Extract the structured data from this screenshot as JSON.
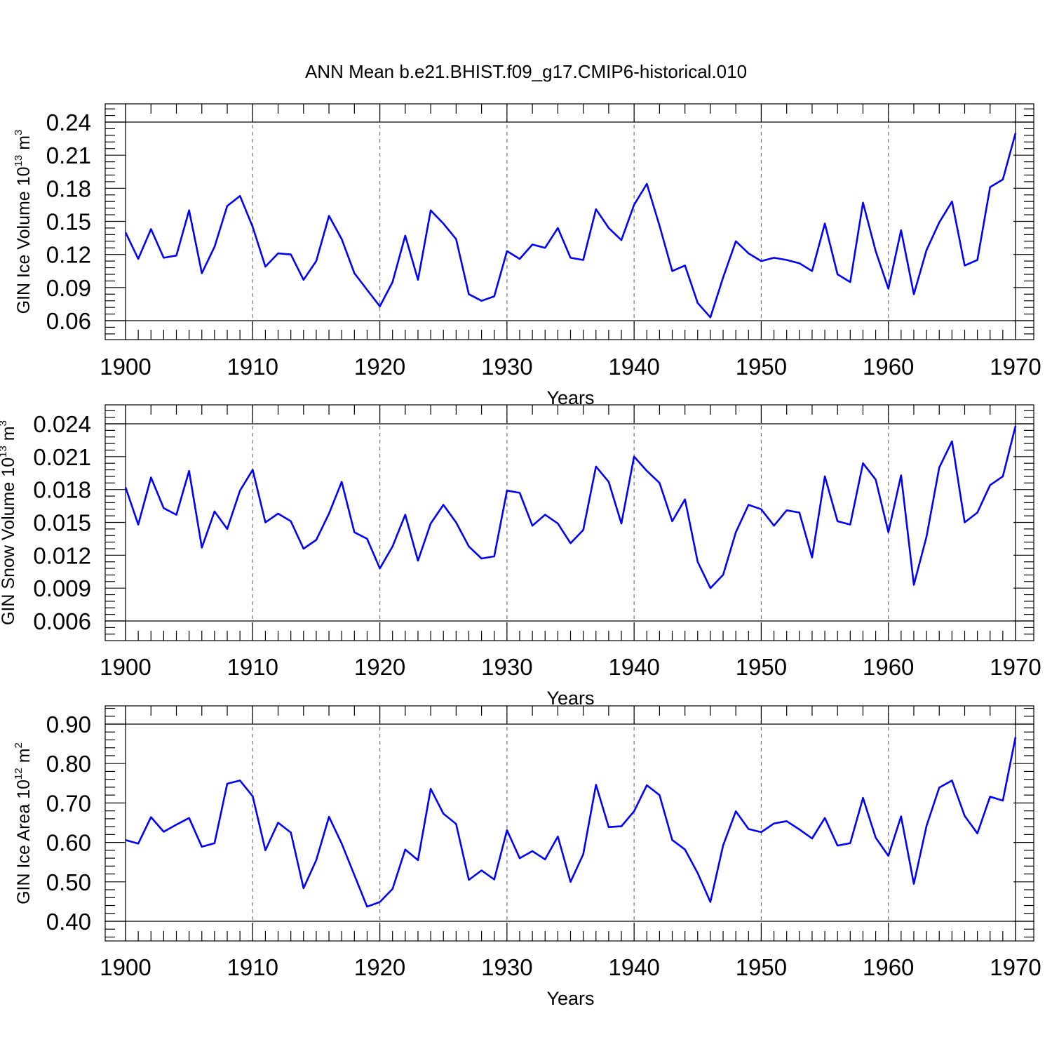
{
  "title": "ANN Mean b.e21.BHIST.f09_g17.CMIP6-historical.010",
  "colors": {
    "line": "#0000ff",
    "axis": "#000000",
    "grid": "#777777"
  },
  "chart_data": [
    {
      "type": "line",
      "xlabel": "Years",
      "ylabel": {
        "name": "GIN Ice Volume",
        "base": "10",
        "exp": "13",
        "unit": "m",
        "unit_exp": "3"
      },
      "xlim": [
        1900,
        1970
      ],
      "ylim": [
        0.06,
        0.24
      ],
      "xticks": [
        1900,
        1910,
        1920,
        1930,
        1940,
        1950,
        1960,
        1970
      ],
      "xtick_labels": [
        "1900",
        "1910",
        "1920",
        "1930",
        "1940",
        "1950",
        "1960",
        "1970"
      ],
      "yticks": [
        0.06,
        0.09,
        0.12,
        0.15,
        0.18,
        0.21,
        0.24
      ],
      "ytick_labels": [
        "0.06",
        "0.09",
        "0.12",
        "0.15",
        "0.18",
        "0.21",
        "0.24"
      ],
      "grid_x": [
        1910,
        1920,
        1930,
        1940,
        1950,
        1960
      ],
      "x": [
        1900,
        1901,
        1902,
        1903,
        1904,
        1905,
        1906,
        1907,
        1908,
        1909,
        1910,
        1911,
        1912,
        1913,
        1914,
        1915,
        1916,
        1917,
        1918,
        1919,
        1920,
        1921,
        1922,
        1923,
        1924,
        1925,
        1926,
        1927,
        1928,
        1929,
        1930,
        1931,
        1932,
        1933,
        1934,
        1935,
        1936,
        1937,
        1938,
        1939,
        1940,
        1941,
        1942,
        1943,
        1944,
        1945,
        1946,
        1947,
        1948,
        1949,
        1950,
        1951,
        1952,
        1953,
        1954,
        1955,
        1956,
        1957,
        1958,
        1959,
        1960,
        1961,
        1962,
        1963,
        1964,
        1965,
        1966,
        1967,
        1968,
        1969,
        1970
      ],
      "values": [
        0.14,
        0.116,
        0.143,
        0.117,
        0.119,
        0.16,
        0.103,
        0.127,
        0.164,
        0.173,
        0.145,
        0.109,
        0.121,
        0.12,
        0.097,
        0.114,
        0.155,
        0.134,
        0.103,
        0.088,
        0.073,
        0.095,
        0.137,
        0.097,
        0.16,
        0.148,
        0.134,
        0.084,
        0.078,
        0.082,
        0.123,
        0.116,
        0.129,
        0.126,
        0.144,
        0.117,
        0.115,
        0.161,
        0.144,
        0.133,
        0.165,
        0.184,
        0.146,
        0.105,
        0.11,
        0.076,
        0.063,
        0.099,
        0.132,
        0.121,
        0.114,
        0.117,
        0.115,
        0.112,
        0.105,
        0.148,
        0.102,
        0.095,
        0.167,
        0.123,
        0.089,
        0.142,
        0.084,
        0.124,
        0.149,
        0.168,
        0.11,
        0.115,
        0.181,
        0.188,
        0.23
      ]
    },
    {
      "type": "line",
      "xlabel": "Years",
      "ylabel": {
        "name": "GIN Snow Volume",
        "base": "10",
        "exp": "13",
        "unit": "m",
        "unit_exp": "3"
      },
      "xlim": [
        1900,
        1970
      ],
      "ylim": [
        0.006,
        0.024
      ],
      "xticks": [
        1900,
        1910,
        1920,
        1930,
        1940,
        1950,
        1960,
        1970
      ],
      "xtick_labels": [
        "1900",
        "1910",
        "1920",
        "1930",
        "1940",
        "1950",
        "1960",
        "1970"
      ],
      "yticks": [
        0.006,
        0.009,
        0.012,
        0.015,
        0.018,
        0.021,
        0.024
      ],
      "ytick_labels": [
        "0.006",
        "0.009",
        "0.012",
        "0.015",
        "0.018",
        "0.021",
        "0.024"
      ],
      "grid_x": [
        1910,
        1920,
        1930,
        1940,
        1950,
        1960
      ],
      "x": [
        1900,
        1901,
        1902,
        1903,
        1904,
        1905,
        1906,
        1907,
        1908,
        1909,
        1910,
        1911,
        1912,
        1913,
        1914,
        1915,
        1916,
        1917,
        1918,
        1919,
        1920,
        1921,
        1922,
        1923,
        1924,
        1925,
        1926,
        1927,
        1928,
        1929,
        1930,
        1931,
        1932,
        1933,
        1934,
        1935,
        1936,
        1937,
        1938,
        1939,
        1940,
        1941,
        1942,
        1943,
        1944,
        1945,
        1946,
        1947,
        1948,
        1949,
        1950,
        1951,
        1952,
        1953,
        1954,
        1955,
        1956,
        1957,
        1958,
        1959,
        1960,
        1961,
        1962,
        1963,
        1964,
        1965,
        1966,
        1967,
        1968,
        1969,
        1970
      ],
      "values": [
        0.0182,
        0.0148,
        0.0191,
        0.0163,
        0.0157,
        0.0197,
        0.0127,
        0.016,
        0.0144,
        0.0179,
        0.0198,
        0.015,
        0.0158,
        0.0151,
        0.0126,
        0.0134,
        0.0158,
        0.0187,
        0.0141,
        0.0135,
        0.0108,
        0.0128,
        0.0157,
        0.0115,
        0.0149,
        0.0166,
        0.015,
        0.0128,
        0.0117,
        0.0119,
        0.0179,
        0.0177,
        0.0147,
        0.0157,
        0.0149,
        0.0131,
        0.0143,
        0.0201,
        0.0187,
        0.0149,
        0.021,
        0.0197,
        0.0186,
        0.0151,
        0.0171,
        0.0114,
        0.009,
        0.0102,
        0.0141,
        0.0166,
        0.0162,
        0.0147,
        0.0161,
        0.0159,
        0.0118,
        0.0192,
        0.0151,
        0.0148,
        0.0204,
        0.0189,
        0.0141,
        0.0193,
        0.0093,
        0.0137,
        0.02,
        0.0224,
        0.015,
        0.0159,
        0.0184,
        0.0192,
        0.0238
      ]
    },
    {
      "type": "line",
      "xlabel": "Years",
      "ylabel": {
        "name": "GIN Ice Area",
        "base": "10",
        "exp": "12",
        "unit": "m",
        "unit_exp": "2"
      },
      "xlim": [
        1900,
        1970
      ],
      "ylim": [
        0.4,
        0.9
      ],
      "xticks": [
        1900,
        1910,
        1920,
        1930,
        1940,
        1950,
        1960,
        1970
      ],
      "xtick_labels": [
        "1900",
        "1910",
        "1920",
        "1930",
        "1940",
        "1950",
        "1960",
        "1970"
      ],
      "yticks": [
        0.4,
        0.5,
        0.6,
        0.7,
        0.8,
        0.9
      ],
      "ytick_labels": [
        "0.40",
        "0.50",
        "0.60",
        "0.70",
        "0.80",
        "0.90"
      ],
      "grid_x": [
        1910,
        1920,
        1930,
        1940,
        1950,
        1960
      ],
      "x": [
        1900,
        1901,
        1902,
        1903,
        1904,
        1905,
        1906,
        1907,
        1908,
        1909,
        1910,
        1911,
        1912,
        1913,
        1914,
        1915,
        1916,
        1917,
        1918,
        1919,
        1920,
        1921,
        1922,
        1923,
        1924,
        1925,
        1926,
        1927,
        1928,
        1929,
        1930,
        1931,
        1932,
        1933,
        1934,
        1935,
        1936,
        1937,
        1938,
        1939,
        1940,
        1941,
        1942,
        1943,
        1944,
        1945,
        1946,
        1947,
        1948,
        1949,
        1950,
        1951,
        1952,
        1953,
        1954,
        1955,
        1956,
        1957,
        1958,
        1959,
        1960,
        1961,
        1962,
        1963,
        1964,
        1965,
        1966,
        1967,
        1968,
        1969,
        1970
      ],
      "values": [
        0.606,
        0.597,
        0.664,
        0.627,
        0.645,
        0.662,
        0.589,
        0.598,
        0.749,
        0.757,
        0.717,
        0.58,
        0.65,
        0.625,
        0.484,
        0.555,
        0.665,
        0.597,
        0.517,
        0.437,
        0.449,
        0.482,
        0.582,
        0.555,
        0.736,
        0.673,
        0.647,
        0.505,
        0.529,
        0.506,
        0.631,
        0.56,
        0.578,
        0.557,
        0.615,
        0.5,
        0.57,
        0.746,
        0.639,
        0.641,
        0.679,
        0.745,
        0.72,
        0.606,
        0.582,
        0.522,
        0.449,
        0.592,
        0.679,
        0.634,
        0.626,
        0.648,
        0.654,
        0.633,
        0.61,
        0.662,
        0.592,
        0.598,
        0.713,
        0.612,
        0.566,
        0.666,
        0.495,
        0.642,
        0.739,
        0.757,
        0.667,
        0.623,
        0.716,
        0.706,
        0.867
      ]
    }
  ]
}
